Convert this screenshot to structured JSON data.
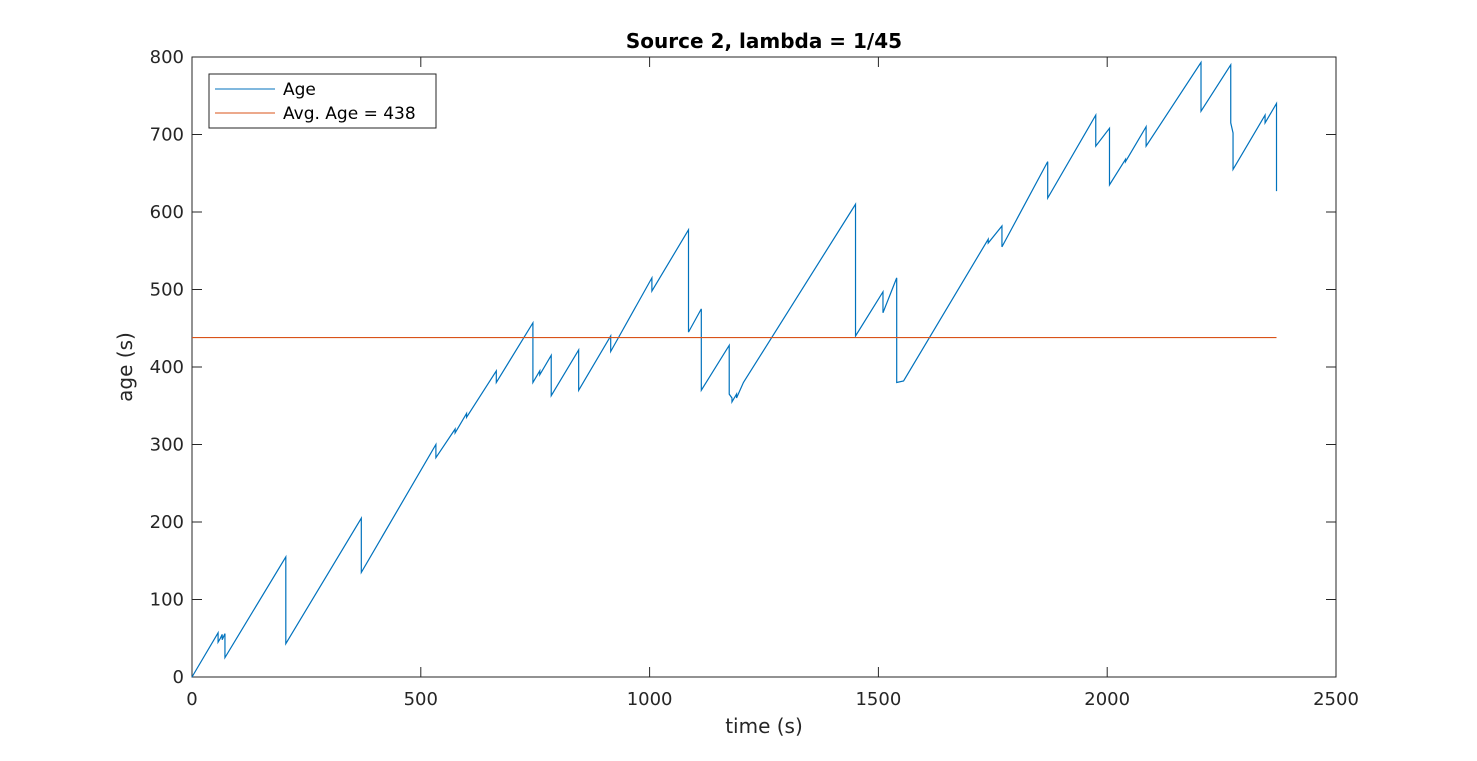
{
  "chart_data": {
    "type": "line",
    "title": "Source 2, lambda = 1/45",
    "xlabel": "time (s)",
    "ylabel": "age (s)",
    "xlim": [
      0,
      2500
    ],
    "ylim": [
      0,
      800
    ],
    "xticks": [
      0,
      500,
      1000,
      1500,
      2000,
      2500
    ],
    "yticks": [
      0,
      100,
      200,
      300,
      400,
      500,
      600,
      700,
      800
    ],
    "grid": false,
    "legend_position": "top-left",
    "series": [
      {
        "name": "Age",
        "color": "#0072BD",
        "x": [
          0,
          57,
          57,
          62,
          66,
          66,
          72,
          72,
          205,
          205,
          370,
          370,
          533,
          533,
          575,
          575,
          600,
          600,
          665,
          665,
          745,
          745,
          760,
          760,
          785,
          785,
          785,
          785,
          845,
          845,
          915,
          915,
          1005,
          1005,
          1085,
          1085,
          1113,
          1113,
          1174,
          1174,
          1180,
          1180,
          1190,
          1190,
          1205,
          1205,
          1450,
          1450,
          1510,
          1510,
          1540,
          1540,
          1555,
          1555,
          1740,
          1740,
          1770,
          1770,
          1870,
          1870,
          1975,
          1975,
          2005,
          2005,
          2040,
          2040,
          2085,
          2085,
          2205,
          2205,
          2270,
          2270,
          2275,
          2275,
          2345,
          2345,
          2370,
          2370
        ],
        "y": [
          0,
          57,
          45,
          50,
          55,
          48,
          56,
          25,
          155,
          43,
          205,
          135,
          300,
          283,
          320,
          315,
          340,
          335,
          395,
          380,
          457,
          380,
          395,
          390,
          415,
          365,
          363,
          363,
          422,
          370,
          440,
          420,
          515,
          498,
          577,
          445,
          475,
          370,
          428,
          365,
          360,
          355,
          365,
          360,
          380,
          380,
          610,
          440,
          497,
          470,
          515,
          380,
          382,
          382,
          565,
          560,
          582,
          555,
          665,
          618,
          725,
          685,
          708,
          635,
          668,
          665,
          710,
          685,
          793,
          730,
          790,
          715,
          702,
          655,
          725,
          715,
          740,
          627
        ]
      },
      {
        "name": "Avg. Age = 438",
        "color": "#D95319",
        "x": [
          0,
          2370
        ],
        "y": [
          438,
          438
        ]
      }
    ]
  }
}
